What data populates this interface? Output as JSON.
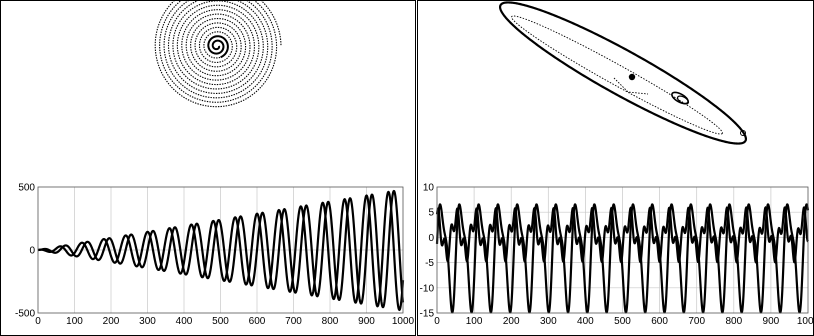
{
  "chart_data": [
    {
      "type": "scatter",
      "panel": "left-top",
      "title": "",
      "description_kind": "phase-portrait",
      "shape": "outward spiral of dotted points",
      "turns": 14,
      "grid": false
    },
    {
      "type": "scatter",
      "panel": "right-top",
      "title": "",
      "description_kind": "phase-portrait",
      "shape": "tilted closed elliptical orbit with inner loops and a central filled dot",
      "grid": false
    },
    {
      "type": "line",
      "panel": "left-bottom",
      "title": "",
      "xlabel": "",
      "ylabel": "",
      "xlim": [
        0,
        1000
      ],
      "ylim": [
        -500,
        500
      ],
      "xticks": [
        0,
        100,
        200,
        300,
        400,
        500,
        600,
        700,
        800,
        900,
        1000
      ],
      "yticks": [
        -500,
        0,
        500
      ],
      "grid": true,
      "series": [
        {
          "amplitude_start": 0,
          "amplitude_end": 480,
          "period": 60,
          "phase": 0
        },
        {
          "amplitude_start": 0,
          "amplitude_end": 480,
          "period": 60,
          "phase": 1.571
        }
      ]
    },
    {
      "type": "line",
      "panel": "right-bottom",
      "title": "",
      "xlabel": "",
      "ylabel": "",
      "xlim": [
        0,
        1000
      ],
      "ylim": [
        -15,
        10
      ],
      "xticks": [
        0,
        100,
        200,
        300,
        400,
        500,
        600,
        700,
        800,
        900,
        1000
      ],
      "yticks": [
        -15,
        -10,
        -5,
        0,
        5,
        10
      ],
      "grid": true,
      "series": [
        {
          "components": [
            [
              -3,
              9.5,
              52,
              0
            ],
            [
              2,
              3,
              26,
              0.6
            ]
          ]
        },
        {
          "components": [
            [
              0.5,
              3.5,
              52,
              1.6
            ],
            [
              0,
              2,
              17.3,
              0.3
            ]
          ]
        }
      ]
    }
  ]
}
